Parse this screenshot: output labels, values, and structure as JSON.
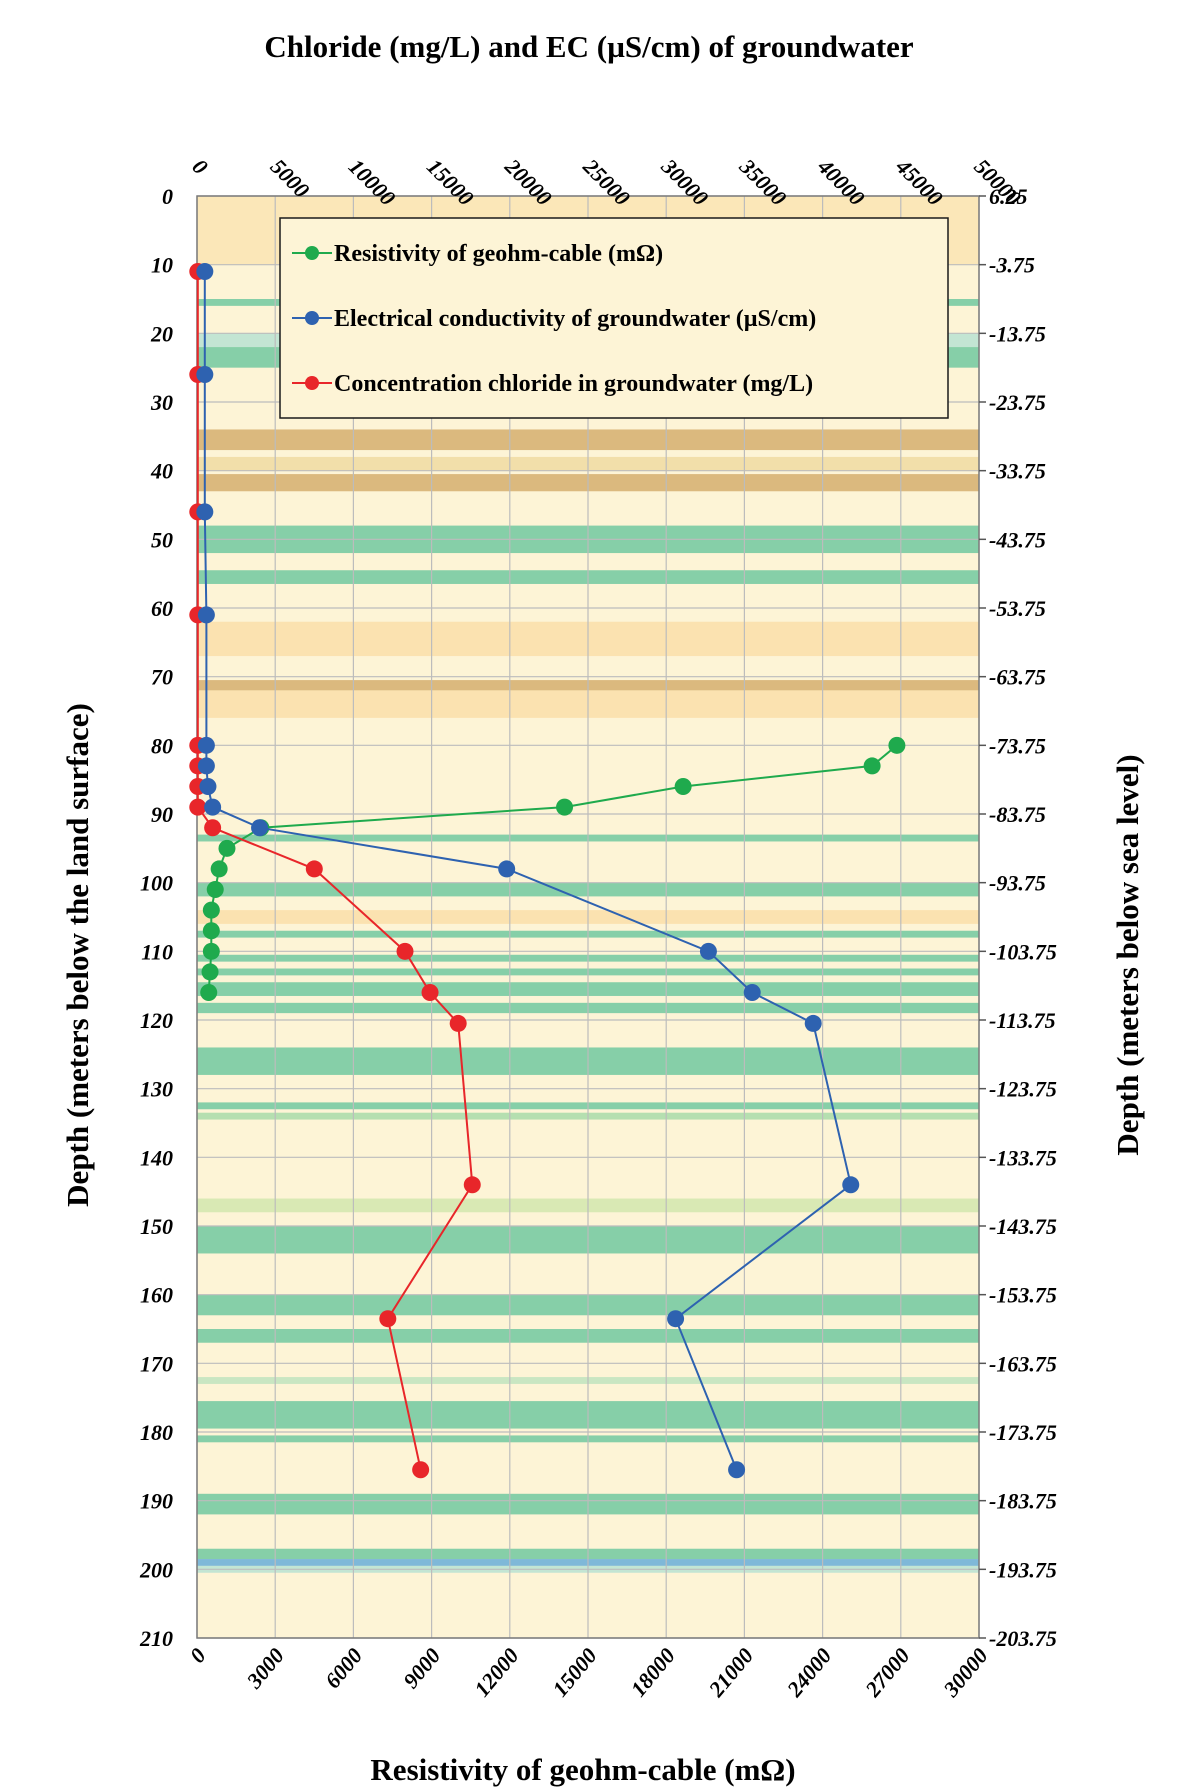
{
  "chart_data": {
    "type": "line",
    "title": "Chloride (mg/L) and EC (µS/cm) of groundwater",
    "xlabel_bottom": "Resistivity of geohm-cable (mΩ)",
    "ylabel_left": "Depth (meters below the land surface)",
    "ylabel_right": "Depth (meters below sea level)",
    "x_bottom": {
      "range": [
        0,
        30000
      ],
      "ticks": [
        "0",
        "3000",
        "6000",
        "9000",
        "12000",
        "15000",
        "18000",
        "21000",
        "24000",
        "27000",
        "30000"
      ]
    },
    "x_top": {
      "range": [
        0,
        50000
      ],
      "ticks": [
        "0",
        "5000",
        "10000",
        "15000",
        "20000",
        "25000",
        "30000",
        "35000",
        "40000",
        "45000",
        "50000"
      ]
    },
    "y_left": {
      "range": [
        0,
        210
      ],
      "reversed": true,
      "ticks": [
        "0",
        "10",
        "20",
        "30",
        "40",
        "50",
        "60",
        "70",
        "80",
        "90",
        "100",
        "110",
        "120",
        "130",
        "140",
        "150",
        "160",
        "170",
        "180",
        "190",
        "200",
        "210"
      ]
    },
    "y_right": {
      "range": [
        6.25,
        -203.75
      ],
      "ticks": [
        "6.25",
        "-3.75",
        "-13.75",
        "-23.75",
        "-33.75",
        "-43.75",
        "-53.75",
        "-63.75",
        "-73.75",
        "-83.75",
        "-93.75",
        "-103.75",
        "-113.75",
        "-123.75",
        "-133.75",
        "-143.75",
        "-153.75",
        "-163.75",
        "-173.75",
        "-183.75",
        "-193.75",
        "-203.75"
      ]
    },
    "grid": true,
    "legend_position": "top",
    "series": [
      {
        "name": "Resistivity of geohm-cable (mΩ)",
        "axis": "bottom",
        "color": "#1faa4d",
        "points": [
          {
            "x": 26850,
            "depth": 80
          },
          {
            "x": 25900,
            "depth": 83
          },
          {
            "x": 18650,
            "depth": 86
          },
          {
            "x": 14100,
            "depth": 89
          },
          {
            "x": 2450,
            "depth": 92
          },
          {
            "x": 1150,
            "depth": 95
          },
          {
            "x": 850,
            "depth": 98
          },
          {
            "x": 700,
            "depth": 101
          },
          {
            "x": 550,
            "depth": 104
          },
          {
            "x": 550,
            "depth": 107
          },
          {
            "x": 550,
            "depth": 110
          },
          {
            "x": 500,
            "depth": 113
          },
          {
            "x": 450,
            "depth": 116
          }
        ]
      },
      {
        "name": "Electrical conductivity of groundwater (µS/cm)",
        "axis": "top",
        "color": "#2e62b0",
        "points": [
          {
            "x": 500,
            "depth": 11
          },
          {
            "x": 500,
            "depth": 26
          },
          {
            "x": 500,
            "depth": 46
          },
          {
            "x": 600,
            "depth": 61
          },
          {
            "x": 600,
            "depth": 80
          },
          {
            "x": 600,
            "depth": 83
          },
          {
            "x": 700,
            "depth": 86
          },
          {
            "x": 1000,
            "depth": 89
          },
          {
            "x": 4000,
            "depth": 92
          },
          {
            "x": 19800,
            "depth": 98
          },
          {
            "x": 32700,
            "depth": 110
          },
          {
            "x": 35500,
            "depth": 116
          },
          {
            "x": 39400,
            "depth": 120.5
          },
          {
            "x": 41800,
            "depth": 144
          },
          {
            "x": 30600,
            "depth": 163.5
          },
          {
            "x": 34500,
            "depth": 185.5
          }
        ]
      },
      {
        "name": "Concentration chloride in groundwater (mg/L)",
        "axis": "top",
        "color": "#e8262a",
        "points": [
          {
            "x": 50,
            "depth": 11
          },
          {
            "x": 50,
            "depth": 26
          },
          {
            "x": 50,
            "depth": 46
          },
          {
            "x": 50,
            "depth": 61
          },
          {
            "x": 50,
            "depth": 80
          },
          {
            "x": 50,
            "depth": 83
          },
          {
            "x": 50,
            "depth": 86
          },
          {
            "x": 50,
            "depth": 89
          },
          {
            "x": 1000,
            "depth": 92
          },
          {
            "x": 7500,
            "depth": 98
          },
          {
            "x": 13300,
            "depth": 110
          },
          {
            "x": 14900,
            "depth": 116
          },
          {
            "x": 16700,
            "depth": 120.5
          },
          {
            "x": 17600,
            "depth": 144
          },
          {
            "x": 12200,
            "depth": 163.5
          },
          {
            "x": 14300,
            "depth": 185.5
          }
        ]
      }
    ],
    "lithology_bands": [
      {
        "from": 0,
        "to": 10,
        "color": "#fbe7b8"
      },
      {
        "from": 15,
        "to": 16,
        "color": "#86cfa8"
      },
      {
        "from": 20,
        "to": 22,
        "color": "#c3e5d3"
      },
      {
        "from": 22,
        "to": 25,
        "color": "#86cfa8"
      },
      {
        "from": 34,
        "to": 37,
        "color": "#dbb97e"
      },
      {
        "from": 38,
        "to": 40,
        "color": "#f2dfaa"
      },
      {
        "from": 40.5,
        "to": 43,
        "color": "#dbb97e"
      },
      {
        "from": 48,
        "to": 52,
        "color": "#86cfa8"
      },
      {
        "from": 54.5,
        "to": 56.5,
        "color": "#86cfa8"
      },
      {
        "from": 62,
        "to": 67,
        "color": "#fbe2b0"
      },
      {
        "from": 70.5,
        "to": 72,
        "color": "#dbb97e"
      },
      {
        "from": 72,
        "to": 76,
        "color": "#fbe2b0"
      },
      {
        "from": 93,
        "to": 94,
        "color": "#86cfa8"
      },
      {
        "from": 100,
        "to": 102,
        "color": "#86cfa8"
      },
      {
        "from": 104,
        "to": 106,
        "color": "#fbe2b0"
      },
      {
        "from": 107,
        "to": 108,
        "color": "#86cfa8"
      },
      {
        "from": 110.5,
        "to": 111.5,
        "color": "#86cfa8"
      },
      {
        "from": 112.5,
        "to": 113.5,
        "color": "#86cfa8"
      },
      {
        "from": 114.5,
        "to": 116.5,
        "color": "#86cfa8"
      },
      {
        "from": 117.5,
        "to": 119,
        "color": "#86cfa8"
      },
      {
        "from": 124,
        "to": 128,
        "color": "#86cfa8"
      },
      {
        "from": 132,
        "to": 133,
        "color": "#86cfa8"
      },
      {
        "from": 133.5,
        "to": 134.5,
        "color": "#b5dfb0"
      },
      {
        "from": 146,
        "to": 148,
        "color": "#d9e9b4"
      },
      {
        "from": 150,
        "to": 154,
        "color": "#86cfa8"
      },
      {
        "from": 160,
        "to": 163,
        "color": "#86cfa8"
      },
      {
        "from": 165,
        "to": 167,
        "color": "#86cfa8"
      },
      {
        "from": 172,
        "to": 173,
        "color": "#c9e6c2"
      },
      {
        "from": 175.5,
        "to": 179.5,
        "color": "#86cfa8"
      },
      {
        "from": 180.5,
        "to": 181.5,
        "color": "#86cfa8"
      },
      {
        "from": 189,
        "to": 192,
        "color": "#86cfa8"
      },
      {
        "from": 197,
        "to": 198.5,
        "color": "#86cfa8"
      },
      {
        "from": 198.5,
        "to": 199.5,
        "color": "#7fb8d8"
      },
      {
        "from": 199.5,
        "to": 200.5,
        "color": "#c3e5d3"
      }
    ],
    "colors": {
      "background": "#fdf4d6",
      "grid": "#bcbcbc"
    }
  }
}
